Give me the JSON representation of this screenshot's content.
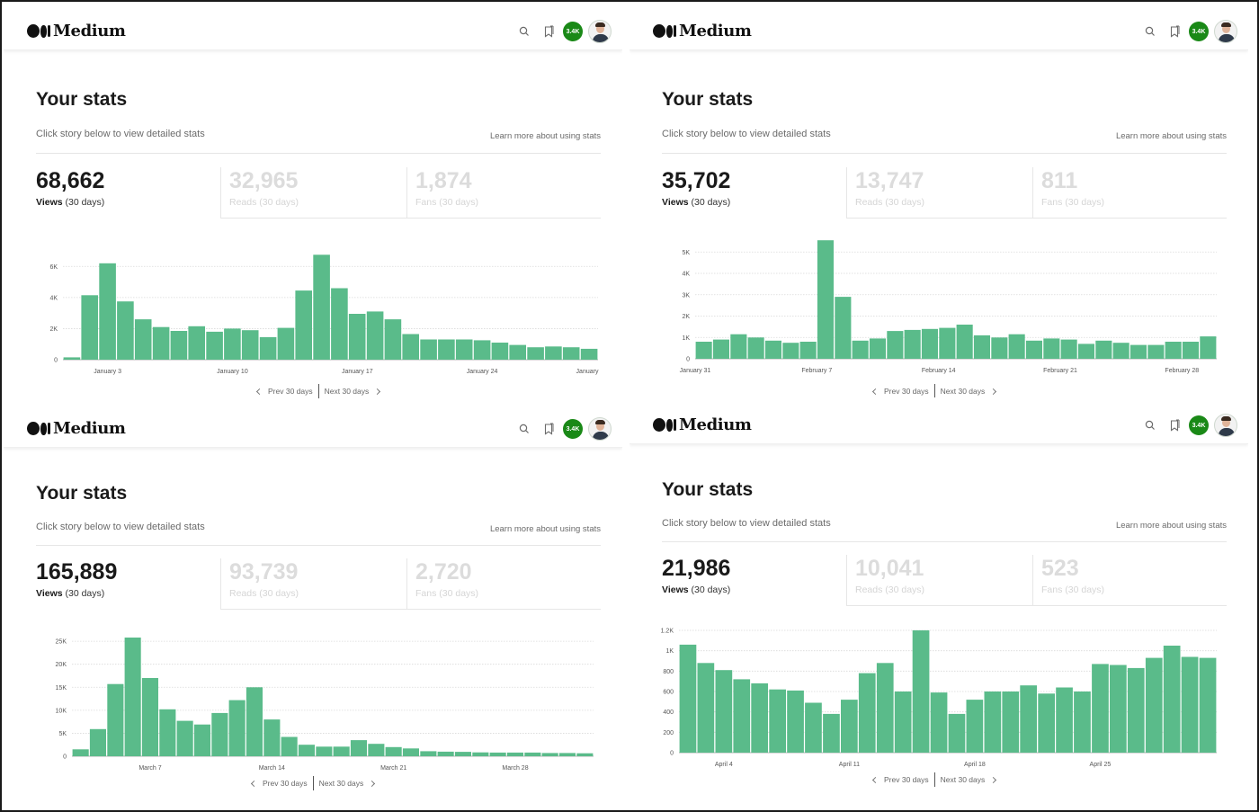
{
  "brand": "Medium",
  "notification_count": "3.4K",
  "colors": {
    "bar": "#5abb8a",
    "badge": "#1a8917",
    "grid": "#d9d9d9"
  },
  "icons": [
    "search-icon",
    "bookmark-icon",
    "avatar"
  ],
  "panels": [
    {
      "title": "Your stats",
      "subtitle": "Click story below to view detailed stats",
      "learn_more": "Learn more about using stats",
      "views": {
        "value": "68,662",
        "label_bold": "Views",
        "label_rest": " (30 days)"
      },
      "reads": {
        "value": "32,965",
        "label": "Reads (30 days)"
      },
      "fans": {
        "value": "1,874",
        "label": "Fans (30 days)"
      },
      "prev_label": "Prev 30 days",
      "next_label": "Next 30 days",
      "chart_data": {
        "type": "bar",
        "title": "",
        "series": [
          {
            "name": "Views",
            "values": [
              150,
              4150,
              6200,
              3750,
              2600,
              2100,
              1850,
              2150,
              1800,
              2000,
              1900,
              1450,
              2050,
              4450,
              6750,
              4600,
              2950,
              3100,
              2600,
              1650,
              1300,
              1300,
              1300,
              1250,
              1100,
              950,
              800,
              850,
              800,
              700
            ]
          }
        ],
        "yticks": [
          "0",
          "2K",
          "4K",
          "6K"
        ],
        "ylim": [
          0,
          7000
        ],
        "xlabels": [
          {
            "index": 2.5,
            "label": "January 3"
          },
          {
            "index": 9.5,
            "label": "January 10"
          },
          {
            "index": 16.5,
            "label": "January 17"
          },
          {
            "index": 23.5,
            "label": "January 24"
          },
          {
            "index": 30.2,
            "label": "January"
          }
        ]
      }
    },
    {
      "title": "Your stats",
      "subtitle": "Click story below to view detailed stats",
      "learn_more": "Learn more about using stats",
      "views": {
        "value": "35,702",
        "label_bold": "Views",
        "label_rest": " (30 days)"
      },
      "reads": {
        "value": "13,747",
        "label": "Reads (30 days)"
      },
      "fans": {
        "value": "811",
        "label": "Fans (30 days)"
      },
      "prev_label": "Prev 30 days",
      "next_label": "Next 30 days",
      "chart_data": {
        "type": "bar",
        "title": "",
        "series": [
          {
            "name": "Views",
            "values": [
              800,
              900,
              1150,
              1000,
              850,
              750,
              800,
              5550,
              2900,
              850,
              950,
              1300,
              1350,
              1400,
              1450,
              1600,
              1100,
              1000,
              1150,
              850,
              950,
              900,
              700,
              850,
              750,
              650,
              650,
              800,
              800,
              1050
            ]
          }
        ],
        "yticks": [
          "0",
          "1K",
          "2K",
          "3K",
          "4K",
          "5K"
        ],
        "ylim": [
          0,
          5600
        ],
        "xlabels": [
          {
            "index": 0,
            "label": "January 31"
          },
          {
            "index": 7,
            "label": "February 7"
          },
          {
            "index": 14,
            "label": "February 14"
          },
          {
            "index": 21,
            "label": "February 21"
          },
          {
            "index": 28,
            "label": "February 28"
          }
        ]
      }
    },
    {
      "title": "Your stats",
      "subtitle": "Click story below to view detailed stats",
      "learn_more": "Learn more about using stats",
      "views": {
        "value": "165,889",
        "label_bold": "Views",
        "label_rest": " (30 days)"
      },
      "reads": {
        "value": "93,739",
        "label": "Reads (30 days)"
      },
      "fans": {
        "value": "2,720",
        "label": "Fans (30 days)"
      },
      "prev_label": "Prev 30 days",
      "next_label": "Next 30 days",
      "chart_data": {
        "type": "bar",
        "title": "",
        "series": [
          {
            "name": "Views",
            "values": [
              1500,
              5900,
              15700,
              25800,
              17000,
              10200,
              7700,
              6900,
              9400,
              12200,
              15000,
              8000,
              4200,
              2500,
              2100,
              2100,
              3500,
              2700,
              2000,
              1700,
              1100,
              1000,
              950,
              850,
              800,
              800,
              800,
              700,
              700,
              650
            ]
          }
        ],
        "yticks": [
          "0",
          "5K",
          "10K",
          "15K",
          "20K",
          "25K"
        ],
        "ylim": [
          0,
          26000
        ],
        "xlabels": [
          {
            "index": 4.5,
            "label": "March 7"
          },
          {
            "index": 11.5,
            "label": "March 14"
          },
          {
            "index": 18.5,
            "label": "March 21"
          },
          {
            "index": 25.5,
            "label": "March 28"
          }
        ]
      }
    },
    {
      "title": "Your stats",
      "subtitle": "Click story below to view detailed stats",
      "learn_more": "Learn more about using stats",
      "views": {
        "value": "21,986",
        "label_bold": "Views",
        "label_rest": " (30 days)"
      },
      "reads": {
        "value": "10,041",
        "label": "Reads (30 days)"
      },
      "fans": {
        "value": "523",
        "label": "Fans (30 days)"
      },
      "prev_label": "Prev 30 days",
      "next_label": "Next 30 days",
      "chart_data": {
        "type": "bar",
        "title": "",
        "series": [
          {
            "name": "Views",
            "values": [
              1060,
              880,
              810,
              720,
              680,
              620,
              610,
              490,
              380,
              520,
              780,
              880,
              600,
              1200,
              590,
              380,
              520,
              600,
              600,
              660,
              580,
              640,
              600,
              870,
              860,
              830,
              930,
              1050,
              940,
              930
            ]
          }
        ],
        "yticks": [
          "0",
          "200",
          "400",
          "600",
          "800",
          "1K",
          "1.2K"
        ],
        "ylim": [
          0,
          1200
        ],
        "xlabels": [
          {
            "index": 2.5,
            "label": "April 4"
          },
          {
            "index": 9.5,
            "label": "April 11"
          },
          {
            "index": 16.5,
            "label": "April 18"
          },
          {
            "index": 23.5,
            "label": "April 25"
          }
        ]
      }
    }
  ]
}
